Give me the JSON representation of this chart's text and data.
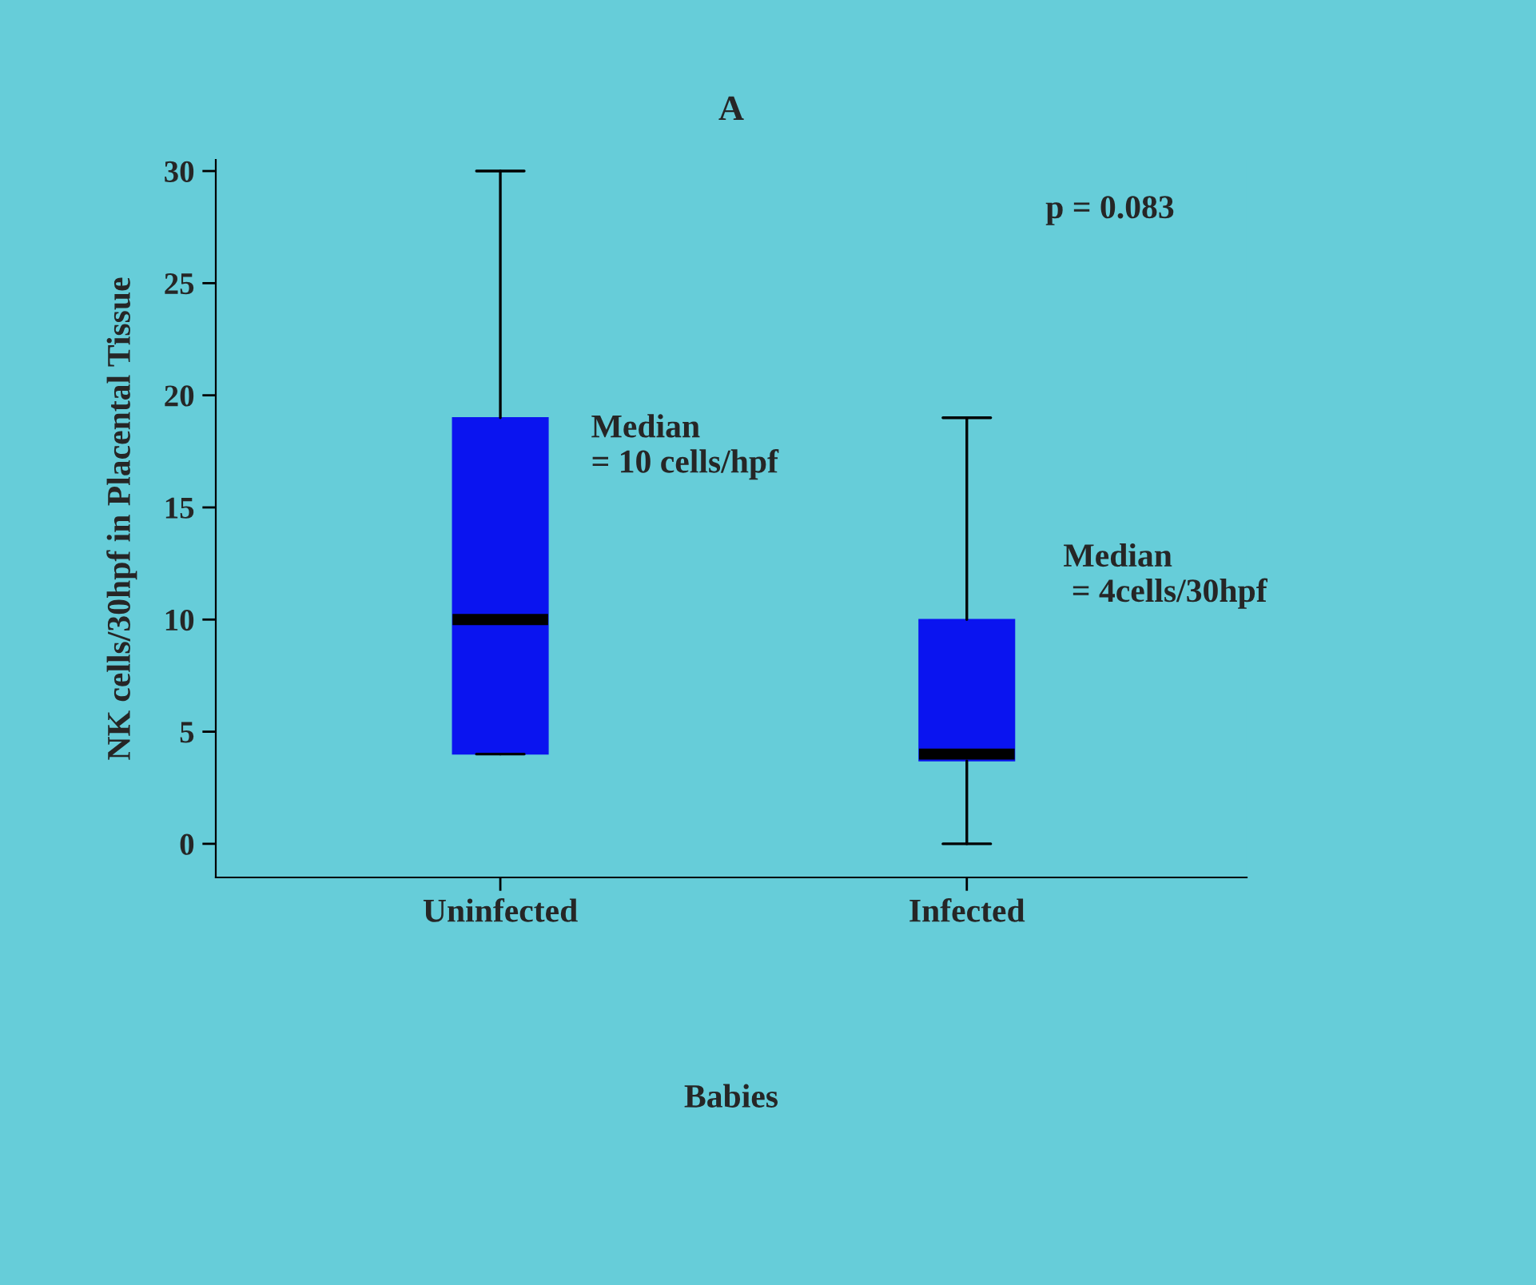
{
  "chart_data": {
    "type": "box",
    "title": "A",
    "xlabel": "Babies",
    "ylabel": "NK cells/30hpf in Placental Tissue",
    "categories": [
      "Uninfected",
      "Infected"
    ],
    "boxes": [
      {
        "low": 4,
        "q1": 4,
        "median": 10,
        "q3": 19,
        "high": 30
      },
      {
        "low": 0,
        "q1": 3.7,
        "median": 4,
        "q3": 10,
        "high": 19
      }
    ],
    "colors": [
      "#0a14f0",
      "#0a14f0"
    ],
    "ylim": [
      -1.5,
      30.5
    ],
    "yticks": [
      0,
      5,
      10,
      15,
      20,
      25,
      30
    ],
    "grid": false,
    "legend": false,
    "annotations": [
      "Median\n= 10 cells/hpf",
      "Median\n = 4cells/30hpf",
      "p = 0.083"
    ]
  }
}
